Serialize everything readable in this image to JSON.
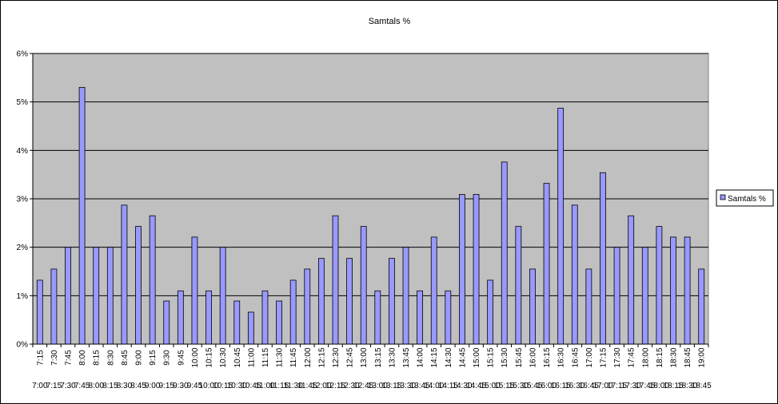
{
  "chart_data": {
    "type": "bar",
    "title": "Samtals %",
    "xlabel": "",
    "ylabel": "",
    "ylim": [
      0,
      6
    ],
    "yticks": [
      "0%",
      "1%",
      "2%",
      "3%",
      "4%",
      "5%",
      "6%"
    ],
    "grid": true,
    "legend_position": "right",
    "plot_background": "#c0c0c0",
    "bar_color": "#9999ff",
    "categories": [
      "7:15",
      "7:30",
      "7:45",
      "8:00",
      "8:15",
      "8:30",
      "8:45",
      "9:00",
      "9:15",
      "9:30",
      "9:45",
      "10:00",
      "10:15",
      "10:30",
      "10:45",
      "11:00",
      "11:15",
      "11:30",
      "11:45",
      "12:00",
      "12:15",
      "12:30",
      "12:45",
      "13:00",
      "13:15",
      "13:30",
      "13:45",
      "14:00",
      "14:15",
      "14:30",
      "14:45",
      "15:00",
      "15:15",
      "15:30",
      "15:45",
      "16:00",
      "16:15",
      "16:30",
      "16:45",
      "17:00",
      "17:15",
      "17:30",
      "17:45",
      "18:00",
      "18:15",
      "18:30",
      "18:45",
      "19:00"
    ],
    "categories_start": [
      "7:00",
      "7:15",
      "7:30",
      "7:45",
      "8:00",
      "8:15",
      "8:30",
      "8:45",
      "9:00",
      "9:15",
      "9:30",
      "9:45",
      "10:00",
      "10:15",
      "10:30",
      "10:45",
      "11:00",
      "11:15",
      "11:30",
      "11:45",
      "12:00",
      "12:15",
      "12:30",
      "12:45",
      "13:00",
      "13:15",
      "13:30",
      "13:45",
      "14:00",
      "14:15",
      "14:30",
      "14:45",
      "15:00",
      "15:15",
      "15:30",
      "15:45",
      "16:00",
      "16:15",
      "16:30",
      "16:45",
      "17:00",
      "17:15",
      "17:30",
      "17:45",
      "18:00",
      "18:15",
      "18:30",
      "18:45"
    ],
    "series": [
      {
        "name": "Samtals %",
        "values": [
          1.32,
          1.55,
          2.0,
          5.3,
          2.0,
          2.0,
          2.87,
          2.43,
          2.65,
          0.89,
          1.1,
          2.21,
          1.1,
          2.0,
          0.89,
          0.66,
          1.1,
          0.89,
          1.32,
          1.55,
          1.77,
          2.65,
          1.77,
          2.43,
          1.1,
          1.77,
          2.0,
          1.1,
          2.21,
          1.1,
          3.09,
          3.09,
          1.32,
          3.76,
          2.43,
          1.55,
          3.32,
          4.87,
          2.87,
          1.55,
          3.54,
          2.0,
          2.65,
          2.0,
          2.43,
          2.21,
          2.21,
          1.55
        ]
      }
    ]
  }
}
